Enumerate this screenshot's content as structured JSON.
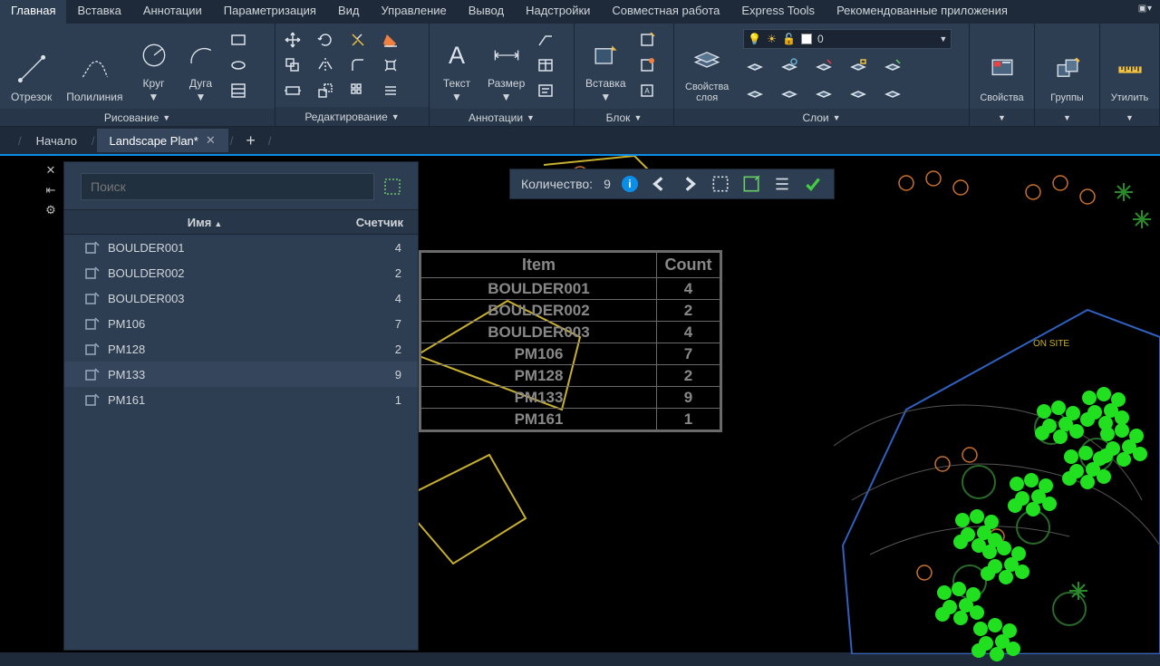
{
  "tabs": [
    "Главная",
    "Вставка",
    "Аннотации",
    "Параметризация",
    "Вид",
    "Управление",
    "Вывод",
    "Надстройки",
    "Совместная работа",
    "Express Tools",
    "Рекомендованные приложения"
  ],
  "active_tab": 0,
  "ribbon": {
    "draw": {
      "title": "Рисование",
      "items": [
        "Отрезок",
        "Полилиния",
        "Круг",
        "Дуга"
      ]
    },
    "edit": {
      "title": "Редактирование"
    },
    "anno": {
      "title": "Аннотации",
      "items": [
        "Текст",
        "Размер"
      ]
    },
    "block": {
      "title": "Блок",
      "item": "Вставка"
    },
    "layer": {
      "title": "Слои",
      "item": "Свойства\nслоя",
      "combo_value": "0"
    },
    "props": {
      "title": "Свойства"
    },
    "groups": {
      "title": "Группы"
    },
    "utils": {
      "title": "Утилить"
    }
  },
  "doctabs": {
    "home": "Начало",
    "active": "Landscape Plan*"
  },
  "palette": {
    "search_placeholder": "Поиск",
    "col_name": "Имя",
    "col_count": "Счетчик",
    "rows": [
      {
        "name": "BOULDER001",
        "count": 4
      },
      {
        "name": "BOULDER002",
        "count": 2
      },
      {
        "name": "BOULDER003",
        "count": 4
      },
      {
        "name": "PM106",
        "count": 7
      },
      {
        "name": "PM128",
        "count": 2
      },
      {
        "name": "PM133",
        "count": 9
      },
      {
        "name": "PM161",
        "count": 1
      }
    ],
    "selected": 5
  },
  "navbar": {
    "label": "Количество:",
    "value": "9"
  },
  "dwg_table": {
    "headers": [
      "Item",
      "Count"
    ],
    "rows": [
      [
        "BOULDER001",
        "4"
      ],
      [
        "BOULDER002",
        "2"
      ],
      [
        "BOULDER003",
        "4"
      ],
      [
        "PM106",
        "7"
      ],
      [
        "PM128",
        "2"
      ],
      [
        "PM133",
        "9"
      ],
      [
        "PM161",
        "1"
      ]
    ]
  },
  "colors": {
    "accent": "#0b8ee8",
    "green": "#20e020",
    "yellow": "#c8b030",
    "orange": "#c87030",
    "blue": "#3060c0",
    "grey": "#6a6a6a"
  }
}
